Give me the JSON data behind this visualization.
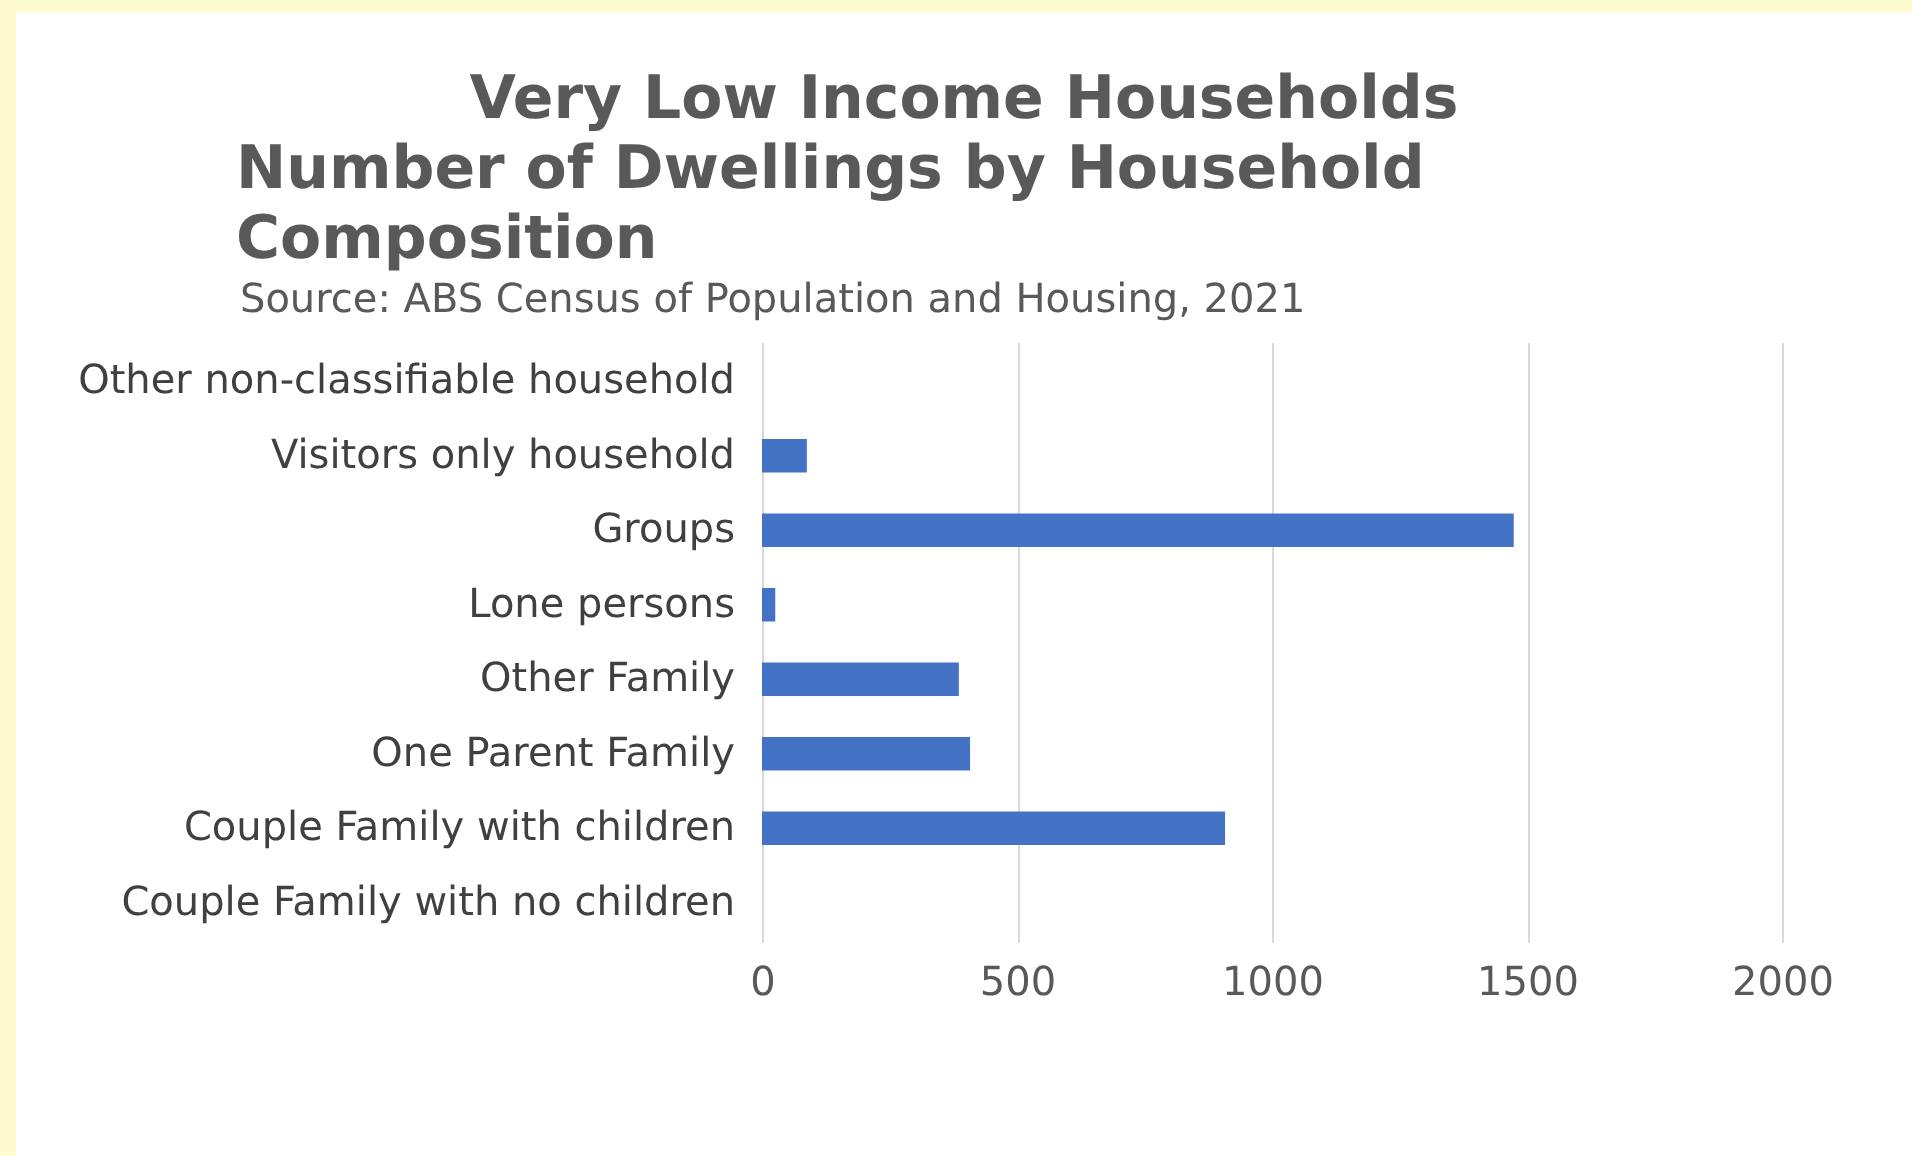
{
  "chart_data": {
    "type": "bar",
    "orientation": "horizontal",
    "title": "Very Low Income Households",
    "subtitle": "Number of Dwellings by Household Composition",
    "annotations": [
      "Source: ABS Census of Population and Housing, 2021"
    ],
    "categories": [
      "Other non-classifiable household",
      "Visitors only household",
      "Groups",
      "Lone persons",
      "Other Family",
      "One Parent Family",
      "Couple Family with children",
      "Couple Family with no children"
    ],
    "values": [
      0,
      88,
      1474,
      26,
      386,
      408,
      908,
      0
    ],
    "color": "#4472c4",
    "xlim": [
      0,
      2000
    ],
    "xticks": [
      0,
      500,
      1000,
      1500,
      2000
    ],
    "grid": "x"
  }
}
